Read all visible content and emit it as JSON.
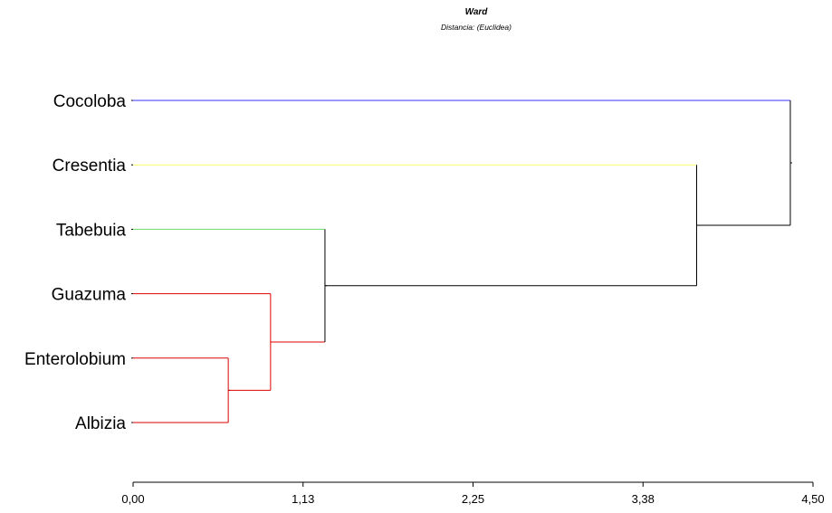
{
  "chart_data": {
    "type": "dendrogram",
    "title": "Ward",
    "subtitle": "Distancia: (Euclidea)",
    "xlim": [
      0,
      4.5
    ],
    "x_ticks": [
      0,
      1.125,
      2.25,
      3.375,
      4.5
    ],
    "x_tick_labels": [
      "0,00",
      "1,13",
      "2,25",
      "3,38",
      "4,50"
    ],
    "grid": false,
    "leaves": [
      {
        "name": "Cocoloba",
        "color": "#3333ff"
      },
      {
        "name": "Cresentia",
        "color": "#ffff66"
      },
      {
        "name": "Tabebuia",
        "color": "#66dd66"
      },
      {
        "name": "Guazuma",
        "color": "#dd0000"
      },
      {
        "name": "Enterolobium",
        "color": "#dd0000"
      },
      {
        "name": "Albizia",
        "color": "#dd0000"
      }
    ],
    "merges": [
      {
        "children": [
          "Enterolobium",
          "Albizia"
        ],
        "height": 0.63,
        "color": "#dd0000"
      },
      {
        "children": [
          "Guazuma",
          "Enterolobium+Albizia"
        ],
        "height": 0.91,
        "color": "#dd0000"
      },
      {
        "children": [
          "Tabebuia",
          "Guazuma+Enterolobium+Albizia"
        ],
        "height": 1.27,
        "color": "#000000"
      },
      {
        "children": [
          "Cresentia",
          "Tabebuia+Guazuma+Enterolobium+Albizia"
        ],
        "height": 3.73,
        "color": "#000000"
      },
      {
        "children": [
          "Cocoloba",
          "Cresentia+Tabebuia+Guazuma+Enterolobium+Albizia"
        ],
        "height": 4.35,
        "color": "#000000"
      }
    ]
  }
}
